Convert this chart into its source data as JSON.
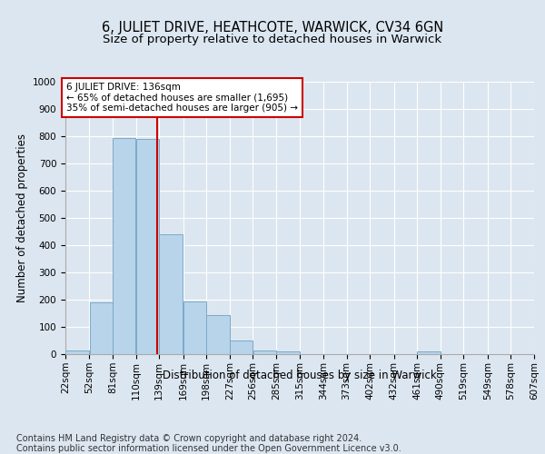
{
  "title": "6, JULIET DRIVE, HEATHCOTE, WARWICK, CV34 6GN",
  "subtitle": "Size of property relative to detached houses in Warwick",
  "xlabel": "Distribution of detached houses by size in Warwick",
  "ylabel": "Number of detached properties",
  "footnote1": "Contains HM Land Registry data © Crown copyright and database right 2024.",
  "footnote2": "Contains public sector information licensed under the Open Government Licence v3.0.",
  "bin_edges": [
    22,
    52,
    81,
    110,
    139,
    169,
    198,
    227,
    256,
    285,
    315,
    344,
    373,
    402,
    432,
    461,
    490,
    519,
    549,
    578,
    607
  ],
  "bar_heights": [
    15,
    190,
    795,
    790,
    440,
    192,
    142,
    50,
    13,
    10,
    0,
    0,
    0,
    0,
    0,
    10,
    0,
    0,
    0,
    0
  ],
  "bar_color": "#b8d4ea",
  "bar_edge_color": "#7aaac8",
  "property_size": 136,
  "red_line_color": "#cc0000",
  "annotation_line1": "6 JULIET DRIVE: 136sqm",
  "annotation_line2": "← 65% of detached houses are smaller (1,695)",
  "annotation_line3": "35% of semi-detached houses are larger (905) →",
  "annotation_box_edge": "#cc0000",
  "ylim": [
    0,
    1000
  ],
  "yticks": [
    0,
    100,
    200,
    300,
    400,
    500,
    600,
    700,
    800,
    900,
    1000
  ],
  "background_color": "#dce6f0",
  "plot_bg_color": "#dce6f0",
  "grid_color": "#ffffff",
  "title_fontsize": 10.5,
  "subtitle_fontsize": 9.5,
  "axis_label_fontsize": 8.5,
  "tick_fontsize": 7.5,
  "annotation_fontsize": 7.5,
  "footnote_fontsize": 7
}
